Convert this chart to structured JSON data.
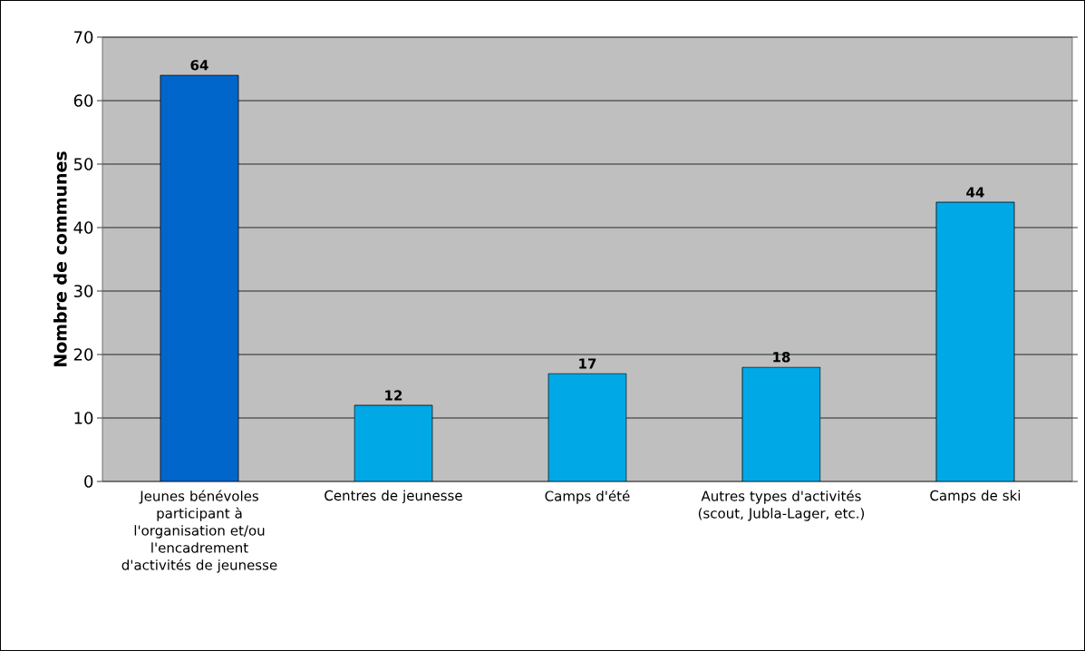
{
  "chart_data": {
    "type": "bar",
    "ylabel": "Nombre de communes",
    "categories": [
      "Jeunes bénévoles participant à l'organisation et/ou l'encadrement d'activités de jeunesse",
      "Centres de jeunesse",
      "Camps d'été",
      "Autres types d'activités (scout, Jubla-Lager, etc.)",
      "Camps de ski"
    ],
    "values": [
      64,
      12,
      17,
      18,
      44
    ],
    "colors": [
      "#0066cc",
      "#00a9e6",
      "#00a9e6",
      "#00a9e6",
      "#00a9e6"
    ],
    "ylim": [
      0,
      70
    ],
    "yticks": [
      0,
      10,
      20,
      30,
      40,
      50,
      60,
      70
    ],
    "grid": "y",
    "data_labels": true
  }
}
